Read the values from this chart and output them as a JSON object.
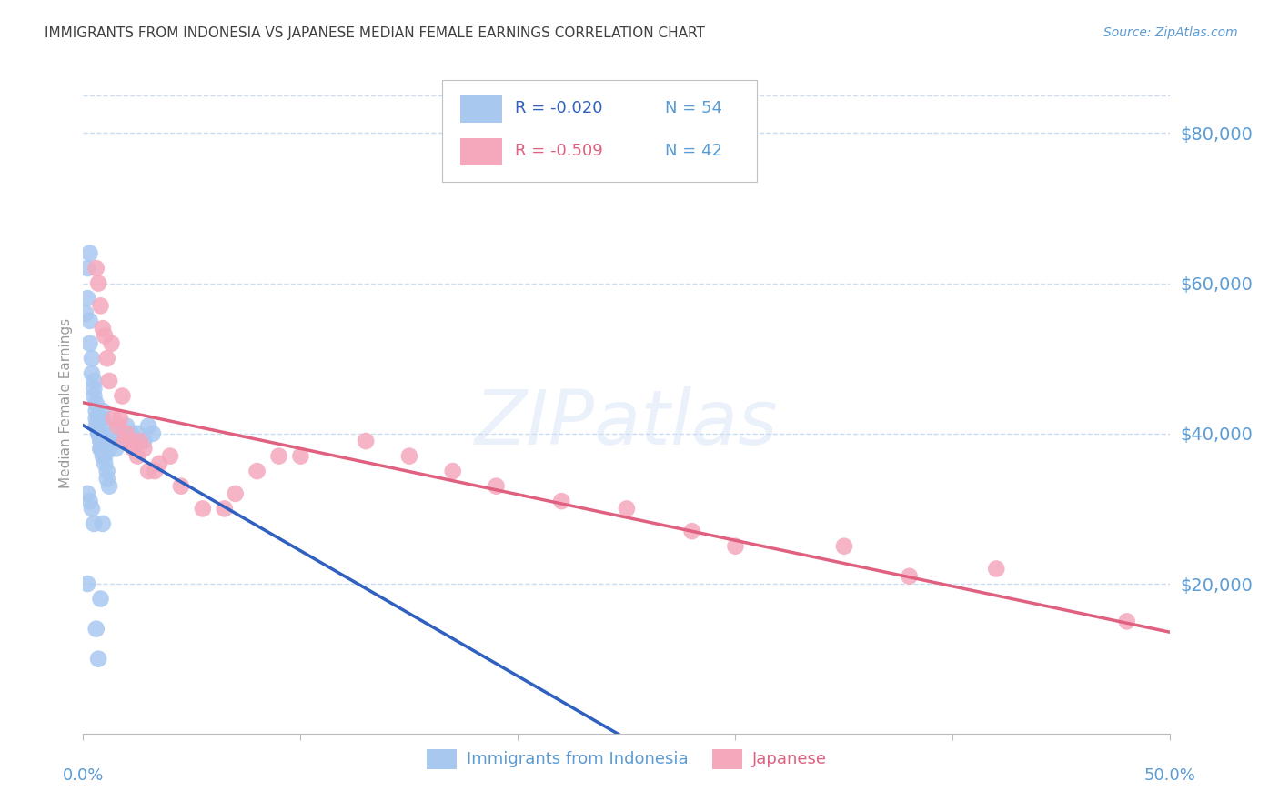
{
  "title": "IMMIGRANTS FROM INDONESIA VS JAPANESE MEDIAN FEMALE EARNINGS CORRELATION CHART",
  "source": "Source: ZipAtlas.com",
  "ylabel": "Median Female Earnings",
  "ytick_values": [
    20000,
    40000,
    60000,
    80000
  ],
  "xmin": 0.0,
  "xmax": 0.5,
  "ymin": 0,
  "ymax": 88000,
  "series1_color": "#a8c8f0",
  "series2_color": "#f5a8bc",
  "trendline1_color": "#3060c0",
  "trendline2_color": "#6090d0",
  "trendline3_color": "#e06080",
  "watermark": "ZIPatlas",
  "title_color": "#404040",
  "axis_color": "#5b9bd5",
  "grid_color": "#c8ddf0",
  "background_color": "#ffffff",
  "legend1_label": "R = -0.020",
  "legend1_n": "N = 54",
  "legend2_label": "R = -0.509",
  "legend2_n": "N = 42",
  "legend_bottom_1": "Immigrants from Indonesia",
  "legend_bottom_2": "Japanese",
  "series1_x": [
    0.001,
    0.002,
    0.002,
    0.003,
    0.003,
    0.003,
    0.004,
    0.004,
    0.005,
    0.005,
    0.005,
    0.006,
    0.006,
    0.006,
    0.006,
    0.007,
    0.007,
    0.007,
    0.007,
    0.008,
    0.008,
    0.008,
    0.008,
    0.009,
    0.009,
    0.009,
    0.01,
    0.01,
    0.01,
    0.011,
    0.011,
    0.012,
    0.012,
    0.013,
    0.014,
    0.015,
    0.016,
    0.017,
    0.018,
    0.02,
    0.022,
    0.025,
    0.028,
    0.03,
    0.032,
    0.002,
    0.003,
    0.004,
    0.005,
    0.006,
    0.007,
    0.008,
    0.009,
    0.002
  ],
  "series1_y": [
    56000,
    58000,
    62000,
    64000,
    55000,
    52000,
    50000,
    48000,
    47000,
    46000,
    45000,
    44000,
    43000,
    42000,
    41000,
    42000,
    41000,
    40000,
    40000,
    39000,
    39000,
    38000,
    38000,
    37000,
    42000,
    43000,
    41000,
    37000,
    36000,
    35000,
    34000,
    33000,
    38000,
    39000,
    40000,
    38000,
    39000,
    39000,
    39000,
    41000,
    40000,
    40000,
    39000,
    41000,
    40000,
    32000,
    31000,
    30000,
    28000,
    14000,
    10000,
    18000,
    28000,
    20000
  ],
  "series2_x": [
    0.006,
    0.007,
    0.008,
    0.009,
    0.01,
    0.011,
    0.012,
    0.013,
    0.014,
    0.016,
    0.017,
    0.018,
    0.019,
    0.02,
    0.022,
    0.023,
    0.025,
    0.026,
    0.028,
    0.03,
    0.033,
    0.035,
    0.04,
    0.045,
    0.055,
    0.065,
    0.07,
    0.08,
    0.09,
    0.1,
    0.13,
    0.15,
    0.17,
    0.19,
    0.22,
    0.25,
    0.28,
    0.3,
    0.35,
    0.38,
    0.42,
    0.48
  ],
  "series2_y": [
    62000,
    60000,
    57000,
    54000,
    53000,
    50000,
    47000,
    52000,
    42000,
    41000,
    42000,
    45000,
    39000,
    40000,
    39000,
    38000,
    37000,
    39000,
    38000,
    35000,
    35000,
    36000,
    37000,
    33000,
    30000,
    30000,
    32000,
    35000,
    37000,
    37000,
    39000,
    37000,
    35000,
    33000,
    31000,
    30000,
    27000,
    25000,
    25000,
    21000,
    22000,
    15000
  ]
}
